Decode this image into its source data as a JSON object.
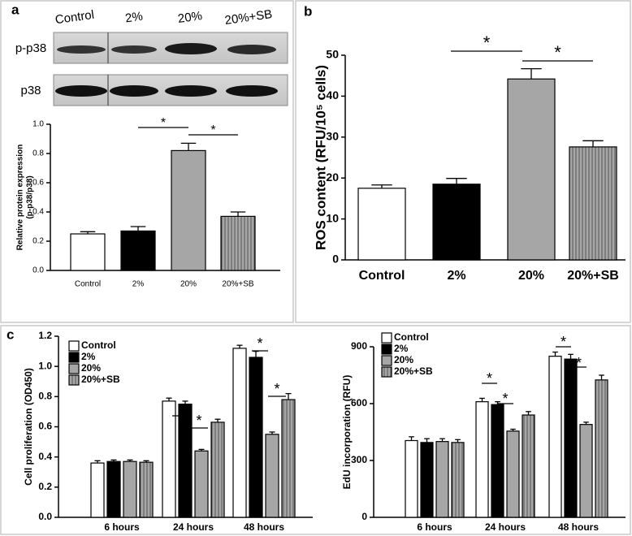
{
  "panel_labels": [
    "a",
    "b",
    "c"
  ],
  "blot": {
    "lanes": [
      "Control",
      "2%",
      "20%",
      "20%+SB"
    ],
    "rows": [
      "p-p38",
      "p38"
    ]
  },
  "chart_data": [
    {
      "type": "bar",
      "ylabel": [
        "Relative protein expression",
        "(p-p38/p38)"
      ],
      "categories": [
        "Control",
        "2%",
        "20%",
        "20%+SB"
      ],
      "values": [
        0.25,
        0.27,
        0.82,
        0.37
      ],
      "errors": [
        0.015,
        0.03,
        0.05,
        0.03
      ],
      "colors": [
        "#ffffff",
        "#000000",
        "#a6a6a6",
        "#a6a6a6"
      ],
      "hatch": [
        false,
        false,
        false,
        true
      ],
      "ylim": [
        0,
        1
      ],
      "yticks": [
        {
          "value": 0,
          "label": "0.0"
        },
        0.2,
        0.4,
        0.6,
        0.8,
        {
          "value": 1,
          "label": "1.0"
        }
      ],
      "annotations": [
        "*",
        "*"
      ]
    },
    {
      "type": "bar",
      "ylabel": [
        "ROS content (RFU/10⁵ cells)"
      ],
      "categories": [
        "Control",
        "2%",
        "20%",
        "20%+SB"
      ],
      "values": [
        17.5,
        18.5,
        44.2,
        27.6
      ],
      "errors": [
        0.8,
        1.4,
        2.5,
        1.5
      ],
      "colors": [
        "#ffffff",
        "#000000",
        "#a6a6a6",
        "#a6a6a6"
      ],
      "hatch": [
        false,
        false,
        false,
        true
      ],
      "ylim": [
        0,
        50
      ],
      "yticks": [
        0,
        10,
        20,
        30,
        40,
        50
      ],
      "annotations": [
        "*",
        "*"
      ]
    },
    {
      "type": "grouped-bar",
      "ylabel": [
        "Cell proliferation (OD450)"
      ],
      "categories": [
        "6 hours",
        "24 hours",
        "48 hours"
      ],
      "series": [
        {
          "name": "Control",
          "color": "#ffffff",
          "hatch": false,
          "values": [
            0.36,
            0.77,
            1.12
          ],
          "errors": [
            0.015,
            0.02,
            0.02
          ]
        },
        {
          "name": "2%",
          "color": "#000000",
          "hatch": false,
          "values": [
            0.37,
            0.75,
            1.06
          ],
          "errors": [
            0.01,
            0.02,
            0.04
          ]
        },
        {
          "name": "20%",
          "color": "#a6a6a6",
          "hatch": false,
          "values": [
            0.37,
            0.44,
            0.55
          ],
          "errors": [
            0.01,
            0.01,
            0.015
          ]
        },
        {
          "name": "20%+SB",
          "color": "#a6a6a6",
          "hatch": true,
          "values": [
            0.365,
            0.63,
            0.78
          ],
          "errors": [
            0.01,
            0.02,
            0.04
          ]
        }
      ],
      "ylim": [
        0,
        1.2
      ],
      "yticks": [
        {
          "value": 0,
          "label": "0.0"
        },
        0.2,
        0.4,
        0.6,
        0.8,
        {
          "value": 1,
          "label": "1.0"
        },
        1.2
      ],
      "annotations": [
        "*",
        "*",
        "*",
        "*"
      ]
    },
    {
      "type": "grouped-bar",
      "ylabel": [
        "EdU incorporation (RFU)"
      ],
      "categories": [
        "6 hours",
        "24 hours",
        "48 hours"
      ],
      "series": [
        {
          "name": "Control",
          "color": "#ffffff",
          "hatch": false,
          "values": [
            405,
            610,
            850
          ],
          "errors": [
            20,
            18,
            22
          ]
        },
        {
          "name": "2%",
          "color": "#000000",
          "hatch": false,
          "values": [
            395,
            595,
            835
          ],
          "errors": [
            20,
            15,
            25
          ]
        },
        {
          "name": "20%",
          "color": "#a6a6a6",
          "hatch": false,
          "values": [
            400,
            455,
            490
          ],
          "errors": [
            15,
            10,
            12
          ]
        },
        {
          "name": "20%+SB",
          "color": "#a6a6a6",
          "hatch": true,
          "values": [
            395,
            540,
            725
          ],
          "errors": [
            15,
            18,
            25
          ]
        }
      ],
      "ylim": [
        0,
        900
      ],
      "yticks": [
        0,
        300,
        600,
        900
      ],
      "annotations": [
        "*",
        "*",
        "*",
        "*"
      ]
    }
  ]
}
